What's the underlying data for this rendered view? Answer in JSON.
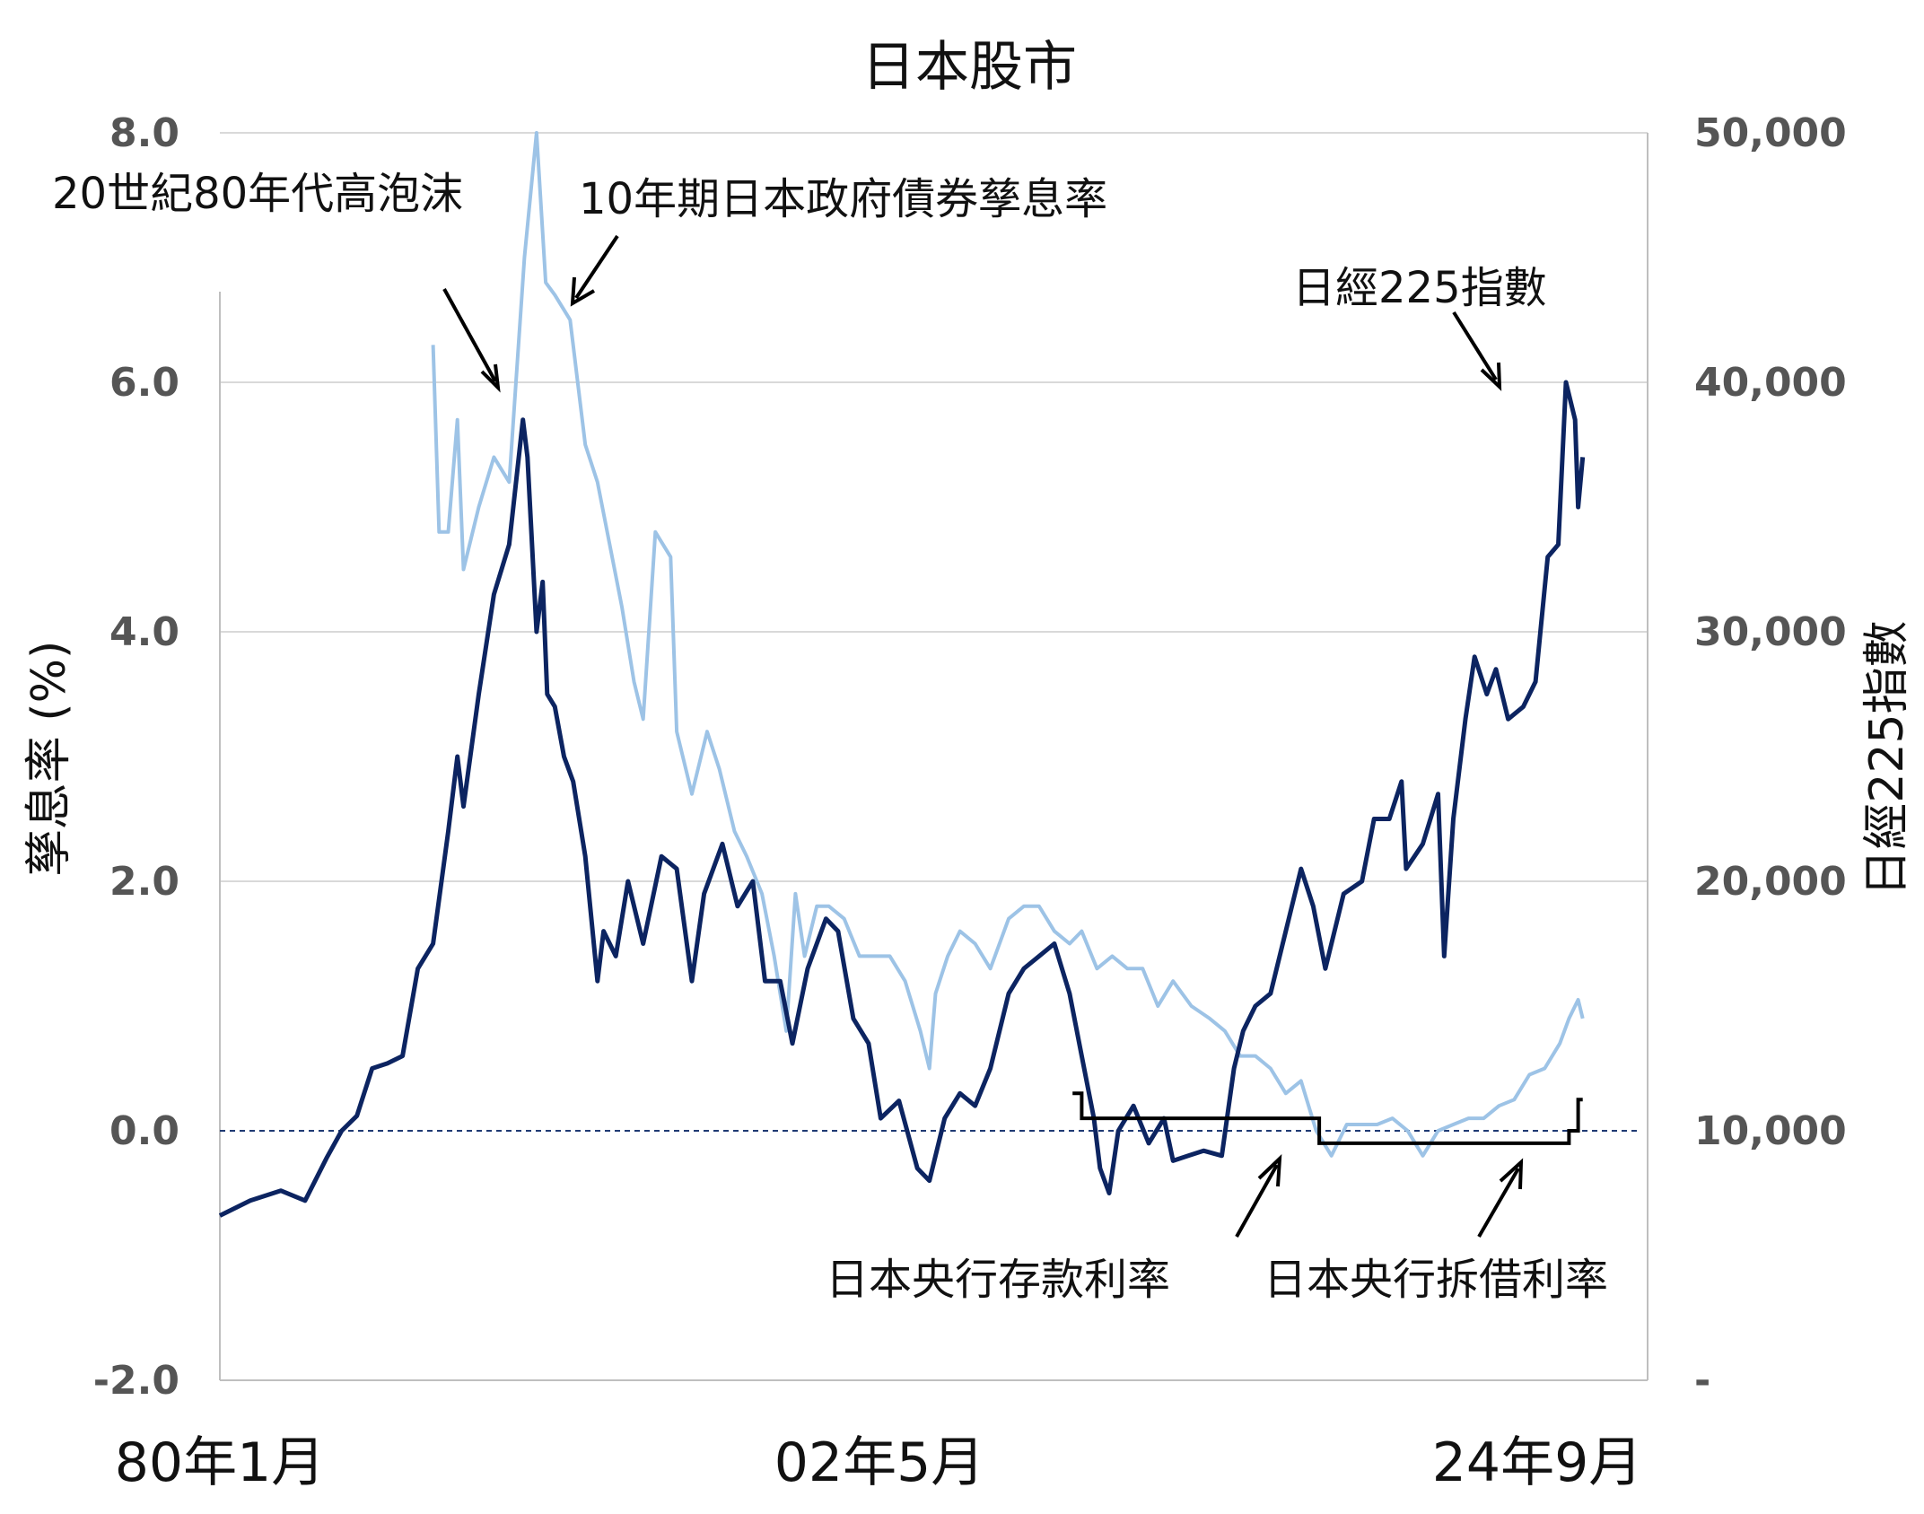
{
  "chart_data": {
    "type": "line",
    "title": "日本股市",
    "ylabel_left": "孳息率 (%)",
    "ylabel_right": "日經225指數",
    "x_ticks": [
      "80年1月",
      "02年5月",
      "24年9月"
    ],
    "x_range": [
      "1980-01",
      "2025-12"
    ],
    "ylim_left": [
      -2.0,
      8.0
    ],
    "ylim_right": [
      0,
      50000
    ],
    "yticks_left": [
      "-2.0",
      "0.0",
      "2.0",
      "4.0",
      "6.0",
      "8.0"
    ],
    "yticks_right": [
      "-",
      "10,000",
      "20,000",
      "30,000",
      "40,000",
      "50,000"
    ],
    "grid": true,
    "zero_line": 0.0,
    "colors": {
      "nikkei": "#0c2461",
      "jgb": "#9dc3e6",
      "policy": "#000000",
      "grid": "#d9d9d9",
      "zero_line": "#1f3a73"
    },
    "annotations": [
      "20世紀80年代高泡沫",
      "10年期日本政府債券孳息率",
      "日經225指數",
      "日本央行存款利率",
      "日本央行拆借利率"
    ],
    "series": [
      {
        "name": "日經225指數",
        "axis": "right",
        "x": [
          1980.0,
          1981.0,
          1982.0,
          1982.8,
          1983.5,
          1984.0,
          1984.5,
          1985.0,
          1985.5,
          1986.0,
          1986.5,
          1987.0,
          1987.5,
          1987.8,
          1988.0,
          1988.5,
          1989.0,
          1989.5,
          1989.95,
          1990.1,
          1990.4,
          1990.6,
          1990.75,
          1991.0,
          1991.3,
          1991.6,
          1992.0,
          1992.4,
          1992.6,
          1993.0,
          1993.4,
          1993.9,
          1994.5,
          1995.0,
          1995.5,
          1995.9,
          1996.5,
          1997.0,
          1997.5,
          1997.9,
          1998.4,
          1998.8,
          1999.3,
          1999.9,
          2000.3,
          2000.8,
          2001.3,
          2001.7,
          2002.3,
          2002.9,
          2003.3,
          2003.8,
          2004.3,
          2004.8,
          2005.3,
          2005.9,
          2006.4,
          2006.9,
          2007.4,
          2007.9,
          2008.3,
          2008.7,
          2008.9,
          2009.2,
          2009.5,
          2010.0,
          2010.5,
          2011.0,
          2011.3,
          2011.8,
          2012.3,
          2012.9,
          2013.3,
          2013.6,
          2014.0,
          2014.5,
          2014.9,
          2015.5,
          2015.9,
          2016.3,
          2016.9,
          2017.5,
          2017.9,
          2018.4,
          2018.8,
          2018.95,
          2019.5,
          2020.0,
          2020.2,
          2020.5,
          2020.9,
          2021.2,
          2021.6,
          2021.9,
          2022.3,
          2022.8,
          2023.2,
          2023.6,
          2023.95,
          2024.2,
          2024.5,
          2024.6,
          2024.75
        ],
        "values": [
          6600,
          7200,
          7600,
          7200,
          8900,
          10000,
          10600,
          12500,
          12700,
          13000,
          16500,
          17500,
          22000,
          25000,
          23000,
          27500,
          31500,
          33500,
          38500,
          37000,
          30000,
          32000,
          27500,
          27000,
          25000,
          24000,
          21000,
          16000,
          18000,
          17000,
          20000,
          17500,
          21000,
          20500,
          16000,
          19500,
          21500,
          19000,
          20000,
          16000,
          16000,
          13500,
          16500,
          18500,
          18000,
          14500,
          13500,
          10500,
          11200,
          8500,
          8000,
          10500,
          11500,
          11000,
          12500,
          15500,
          16500,
          17000,
          17500,
          15500,
          13000,
          10500,
          8500,
          7500,
          10000,
          11000,
          9500,
          10500,
          8800,
          9000,
          9200,
          9000,
          12500,
          14000,
          15000,
          15500,
          17500,
          20500,
          19000,
          16500,
          19500,
          20000,
          22500,
          22500,
          24000,
          20500,
          21500,
          23500,
          17000,
          22500,
          26500,
          29000,
          27500,
          28500,
          26500,
          27000,
          28000,
          33000,
          33500,
          40000,
          38500,
          35000,
          37000
        ]
      },
      {
        "name": "10年期日本政府債券孳息率",
        "axis": "left",
        "x": [
          1987.0,
          1987.2,
          1987.5,
          1987.8,
          1988.0,
          1988.5,
          1989.0,
          1989.5,
          1990.0,
          1990.4,
          1990.7,
          1991.0,
          1991.5,
          1992.0,
          1992.4,
          1992.8,
          1993.2,
          1993.6,
          1993.9,
          1994.3,
          1994.8,
          1995.0,
          1995.5,
          1996.0,
          1996.4,
          1996.9,
          1997.3,
          1997.8,
          1998.2,
          1998.6,
          1998.9,
          1999.2,
          1999.6,
          2000.0,
          2000.5,
          2001.0,
          2001.5,
          2002.0,
          2002.5,
          2003.0,
          2003.3,
          2003.5,
          2003.9,
          2004.3,
          2004.8,
          2005.3,
          2005.9,
          2006.4,
          2006.9,
          2007.4,
          2007.9,
          2008.3,
          2008.8,
          2009.3,
          2009.8,
          2010.3,
          2010.8,
          2011.3,
          2011.9,
          2012.5,
          2013.0,
          2013.5,
          2014.0,
          2014.5,
          2015.0,
          2015.5,
          2016.0,
          2016.5,
          2017.0,
          2017.5,
          2018.0,
          2018.5,
          2019.0,
          2019.5,
          2020.0,
          2020.5,
          2021.0,
          2021.5,
          2022.0,
          2022.5,
          2023.0,
          2023.5,
          2024.0,
          2024.3,
          2024.6,
          2024.75
        ],
        "values": [
          6.3,
          4.8,
          4.8,
          5.7,
          4.5,
          5.0,
          5.4,
          5.2,
          7.0,
          8.0,
          6.8,
          6.7,
          6.5,
          5.5,
          5.2,
          4.7,
          4.2,
          3.6,
          3.3,
          4.8,
          4.6,
          3.2,
          2.7,
          3.2,
          2.9,
          2.4,
          2.2,
          1.9,
          1.4,
          0.8,
          1.9,
          1.4,
          1.8,
          1.8,
          1.7,
          1.4,
          1.4,
          1.4,
          1.2,
          0.8,
          0.5,
          1.1,
          1.4,
          1.6,
          1.5,
          1.3,
          1.7,
          1.8,
          1.8,
          1.6,
          1.5,
          1.6,
          1.3,
          1.4,
          1.3,
          1.3,
          1.0,
          1.2,
          1.0,
          0.9,
          0.8,
          0.6,
          0.6,
          0.5,
          0.3,
          0.4,
          0.0,
          -0.2,
          0.05,
          0.05,
          0.05,
          0.1,
          0.0,
          -0.2,
          0.0,
          0.05,
          0.1,
          0.1,
          0.2,
          0.25,
          0.45,
          0.5,
          0.7,
          0.9,
          1.05,
          0.9
        ]
      },
      {
        "name": "日本央行存款利率",
        "axis": "left",
        "x": [
          2008.0,
          2008.3,
          2015.8,
          2016.0,
          2016.1,
          2024.2,
          2024.3,
          2024.6,
          2024.75
        ],
        "values": [
          0.3,
          0.1,
          0.1,
          0.1,
          -0.1,
          -0.1,
          0.0,
          0.25,
          0.25
        ]
      }
    ]
  }
}
